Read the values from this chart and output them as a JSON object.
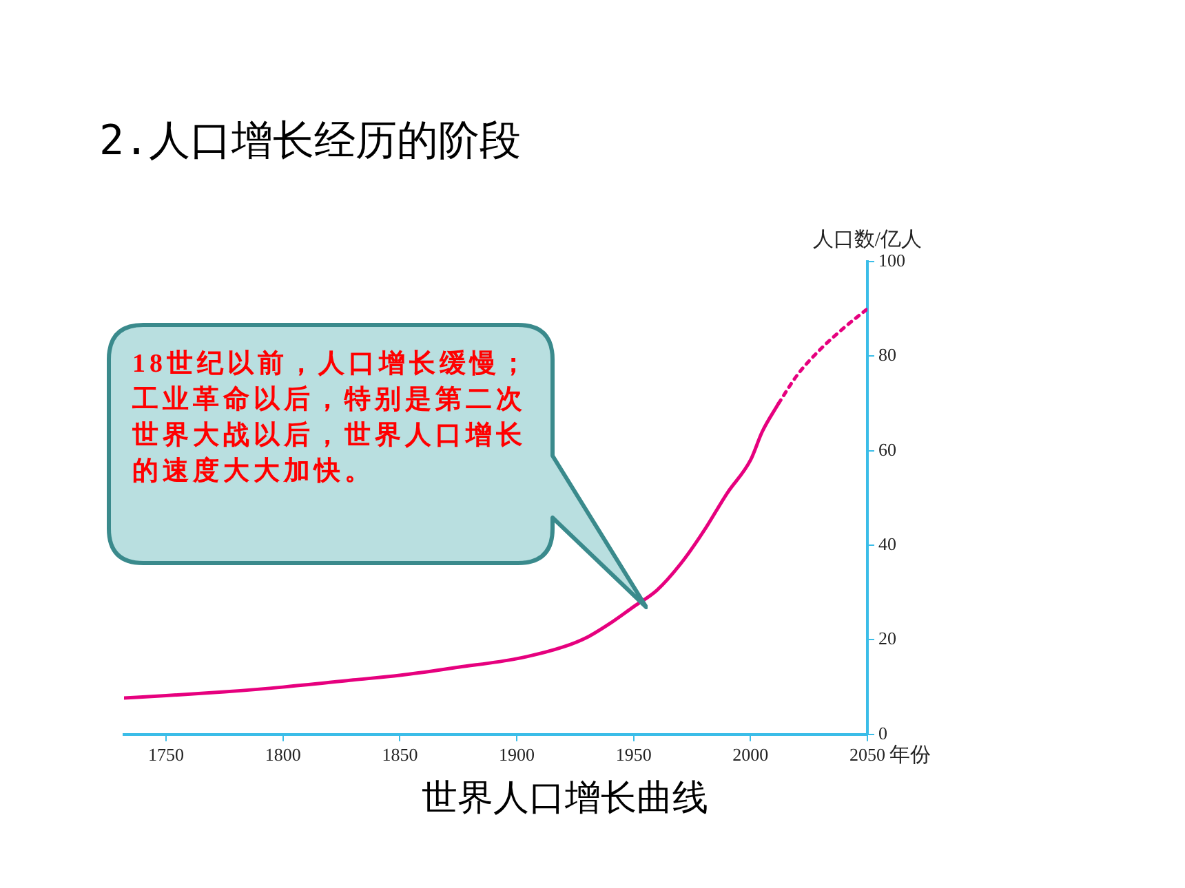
{
  "chart_data": {
    "type": "line",
    "title": "2.人口增长经历的阶段",
    "xlabel": "年份",
    "ylabel": "人口数/亿人",
    "series": [
      {
        "color": "#e6007e",
        "line_style": "solid",
        "x": [
          1732,
          1750,
          1775,
          1800,
          1830,
          1850,
          1875,
          1900,
          1920,
          1930,
          1940,
          1950,
          1960,
          1970,
          1980,
          1990,
          2000,
          2005,
          2012
        ],
        "values": [
          7.7,
          8.2,
          9,
          10,
          11.5,
          12.5,
          14.2,
          16,
          18.5,
          20.5,
          23.5,
          27,
          30.5,
          36,
          43,
          51,
          58,
          64,
          70
        ]
      },
      {
        "color": "#e6007e",
        "line_style": "dotted",
        "x": [
          2012,
          2020,
          2030,
          2040,
          2050
        ],
        "values": [
          70,
          76,
          81.5,
          86,
          90
        ]
      }
    ],
    "xlim": [
      1732,
      2050
    ],
    "xticks": [
      1750,
      1800,
      1850,
      1900,
      1950,
      2000,
      2050
    ],
    "ylim": [
      0,
      100
    ],
    "yticks": [
      0,
      20,
      40,
      60,
      80,
      100
    ],
    "grid": false,
    "legend": false,
    "marker": "none",
    "annotations": [
      "18世纪以前，人口增长缓慢；工业革命以后，特别是第二次世界大战以后，世界人口增长的速度大大加快。",
      "世界人口增长曲线"
    ]
  }
}
